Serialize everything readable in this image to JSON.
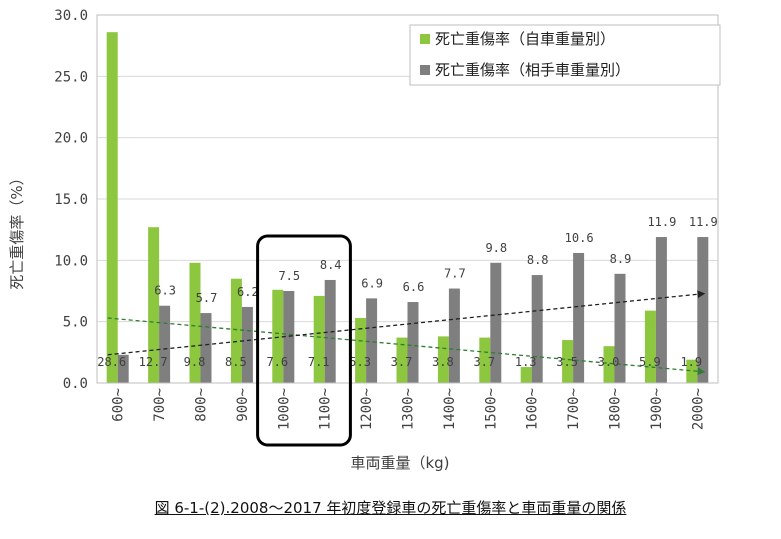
{
  "chart_data": {
    "type": "bar",
    "title": "",
    "xlabel": "車両重量（kg)",
    "ylabel": "死亡重傷率（%）",
    "ylim": [
      0,
      30
    ],
    "yticks": [
      "0.0",
      "5.0",
      "10.0",
      "15.0",
      "20.0",
      "25.0",
      "30.0"
    ],
    "ytick_values": [
      0,
      5,
      10,
      15,
      20,
      25,
      30
    ],
    "categories": [
      "600~",
      "700~",
      "800~",
      "900~",
      "1000~",
      "1100~",
      "1200~",
      "1300~",
      "1400~",
      "1500~",
      "1600~",
      "1700~",
      "1800~",
      "1900~",
      "2000~"
    ],
    "series": [
      {
        "name": "死亡重傷率（自車重量別）",
        "color": "#8dc63f",
        "values": [
          28.6,
          12.7,
          9.8,
          8.5,
          7.6,
          7.1,
          5.3,
          3.7,
          3.8,
          3.7,
          1.3,
          3.5,
          3.0,
          5.9,
          1.9
        ],
        "labels": [
          "28.6",
          "12.7",
          "9.8",
          "8.5",
          "7.6",
          "7.1",
          "5.3",
          "3.7",
          "3.8",
          "3.7",
          "1.3",
          "3.5",
          "3.0",
          "5.9",
          "1.9"
        ]
      },
      {
        "name": "死亡重傷率（相手車重量別）",
        "color": "#7f7f7f",
        "values": [
          2.3,
          6.3,
          5.7,
          6.2,
          7.5,
          8.4,
          6.9,
          6.6,
          7.7,
          9.8,
          8.8,
          10.6,
          8.9,
          11.9,
          11.9
        ],
        "labels": [
          "",
          "6.3",
          "5.7",
          "6.2",
          "7.5",
          "8.4",
          "6.9",
          "6.6",
          "7.7",
          "9.8",
          "8.8",
          "10.6",
          "8.9",
          "11.9",
          "11.9"
        ]
      }
    ],
    "trendlines": [
      {
        "series": "死亡重傷率（自車重量別）",
        "color": "#2e7d32",
        "style": "dashed",
        "start": 5.3,
        "end": 0.9
      },
      {
        "series": "死亡重傷率（相手車重量別）",
        "color": "#222222",
        "style": "dashed",
        "start": 2.3,
        "end": 7.3
      }
    ],
    "highlight": {
      "categories": [
        "1000~",
        "1100~"
      ]
    },
    "grid": true,
    "legend": "top-right"
  },
  "caption": "図 6-1-(2).2008～2017 年初度登録車の死亡重傷率と車両重量の関係"
}
